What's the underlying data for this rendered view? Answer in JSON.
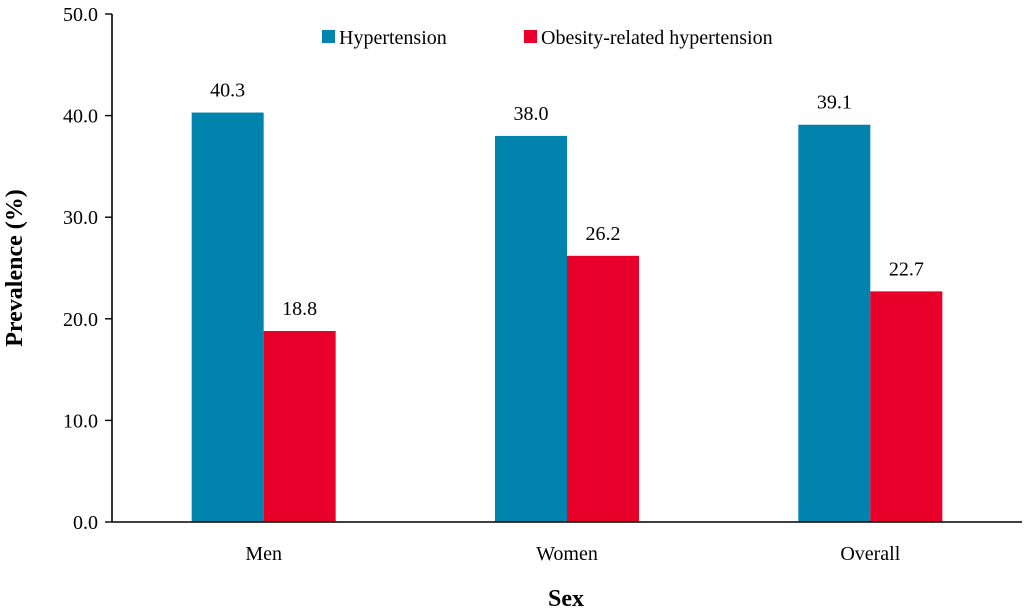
{
  "chart_data": {
    "type": "bar",
    "categories": [
      "Men",
      "Women",
      "Overall"
    ],
    "series": [
      {
        "name": "Hypertension",
        "values": [
          40.3,
          38.0,
          39.1
        ],
        "labels": [
          "40.3",
          "38.0",
          "39.1"
        ],
        "color": "#0083ac"
      },
      {
        "name": "Obesity-related hypertension",
        "values": [
          18.8,
          26.2,
          22.7
        ],
        "labels": [
          "18.8",
          "26.2",
          "22.7"
        ],
        "color": "#e8002a"
      }
    ],
    "xlabel": "Sex",
    "ylabel": "Prevalence (%)",
    "ylim": [
      0,
      50
    ],
    "yticks": [
      0,
      10,
      20,
      30,
      40,
      50
    ],
    "ytick_labels": [
      "0.0",
      "10.0",
      "20.0",
      "30.0",
      "40.0",
      "50.0"
    ],
    "grid": false,
    "legend_position": "top"
  }
}
